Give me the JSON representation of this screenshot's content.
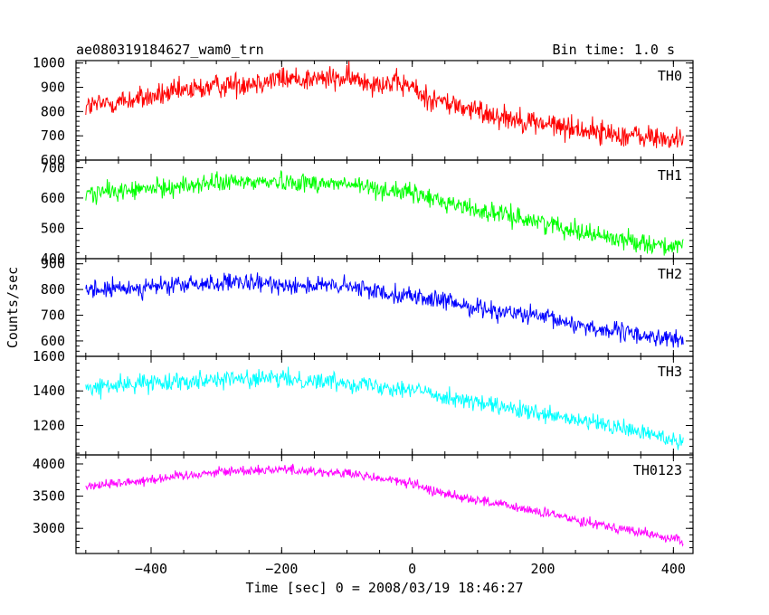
{
  "title_left": "ae080319184627_wam0_trn",
  "title_right": "Bin time: 1.0 s",
  "colors": {
    "TH0": "#ff0000",
    "TH1": "#00ff00",
    "TH2": "#0000ff",
    "TH3": "#00ffff",
    "TH0123": "#ff00ff"
  },
  "chart_data": {
    "type": "line",
    "xlabel": "Time [sec] 0 = 2008/03/19 18:46:27",
    "ylabel": "Counts/sec",
    "xlim": [
      -515,
      430
    ],
    "x_ticks": [
      -400,
      -200,
      0,
      200,
      400
    ],
    "x_tick_labels": [
      "−400",
      "−200",
      "0",
      "200",
      "400"
    ],
    "grid": false,
    "noise": "high-frequency counting noise around the trend",
    "panels": [
      {
        "name": "TH0",
        "ylim": [
          600,
          1010
        ],
        "y_ticks": [
          600,
          700,
          800,
          900,
          1000
        ],
        "y_tick_labels": [
          "600",
          "700",
          "800",
          "900",
          "1000"
        ],
        "trend": {
          "x": [
            -500,
            -400,
            -300,
            -200,
            -100,
            0,
            10,
            60,
            100,
            200,
            300,
            415
          ],
          "y": [
            820,
            860,
            905,
            935,
            935,
            905,
            870,
            830,
            800,
            750,
            710,
            680
          ]
        },
        "noise_amplitude": 45
      },
      {
        "name": "TH1",
        "ylim": [
          400,
          725
        ],
        "y_ticks": [
          400,
          500,
          600,
          700
        ],
        "y_tick_labels": [
          "400",
          "500",
          "600",
          "700"
        ],
        "trend": {
          "x": [
            -500,
            -400,
            -300,
            -200,
            -100,
            0,
            100,
            200,
            300,
            415
          ],
          "y": [
            615,
            630,
            650,
            655,
            645,
            615,
            560,
            520,
            470,
            435
          ]
        },
        "noise_amplitude": 28
      },
      {
        "name": "TH2",
        "ylim": [
          540,
          920
        ],
        "y_ticks": [
          600,
          700,
          800,
          900
        ],
        "y_tick_labels": [
          "600",
          "700",
          "800",
          "900"
        ],
        "trend": {
          "x": [
            -500,
            -400,
            -300,
            -200,
            -100,
            0,
            100,
            200,
            300,
            415
          ],
          "y": [
            795,
            810,
            825,
            820,
            810,
            775,
            730,
            690,
            640,
            600
          ]
        },
        "noise_amplitude": 32
      },
      {
        "name": "TH3",
        "ylim": [
          1030,
          1600
        ],
        "y_ticks": [
          1200,
          1400,
          1600
        ],
        "y_tick_labels": [
          "1200",
          "1400",
          "1600"
        ],
        "trend": {
          "x": [
            -500,
            -400,
            -300,
            -200,
            -100,
            0,
            100,
            200,
            300,
            415
          ],
          "y": [
            1415,
            1450,
            1470,
            1470,
            1450,
            1410,
            1330,
            1260,
            1200,
            1110
          ]
        },
        "noise_amplitude": 45
      },
      {
        "name": "TH0123",
        "ylim": [
          2610,
          4140
        ],
        "y_ticks": [
          3000,
          3500,
          4000
        ],
        "y_tick_labels": [
          "3000",
          "3500",
          "4000"
        ],
        "trend": {
          "x": [
            -500,
            -400,
            -300,
            -200,
            -100,
            0,
            10,
            60,
            100,
            200,
            300,
            415
          ],
          "y": [
            3650,
            3760,
            3880,
            3920,
            3850,
            3700,
            3640,
            3520,
            3440,
            3240,
            3040,
            2800
          ]
        },
        "noise_amplitude": 70
      }
    ]
  }
}
